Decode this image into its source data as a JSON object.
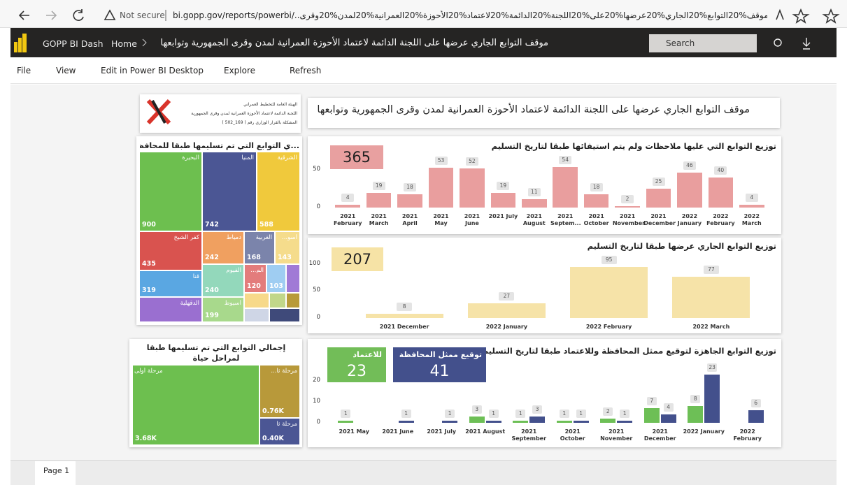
{
  "browser": {
    "security": "Not secure",
    "url": "bi.gopp.gov/reports/powerbi/..الجمه%20موقف%20التوابع%20الجاري%20عرضها%20على%20اللجنة%20الدائمة%20لاعتماد%20الأحوزة%20العمرانية%20لمدن%20وقرى"
  },
  "app_bar": {
    "app_name": "GOPP BI Dash",
    "breadcrumb": "Home",
    "report_title": "موقف التوابع الجاري عرضها على اللجنة الدائمة لاعتماد الأحوزة العمرانية لمدن وقرى الجمهورية وتوابعها",
    "search": "Search"
  },
  "toolbar": [
    "File",
    "View",
    "Edit in Power BI Desktop",
    "Explore",
    "Refresh"
  ],
  "header": {
    "lines": [
      "الهيئة العامة للتخطيط العمراني",
      "اللجنة الدائمة لاعتماد الأحوزة العمرانية لمدن وقرى الجمهورية",
      "المشكلة بالقرار الوزاري رقم ( 169_502 )"
    ],
    "title": "موقف التوابع الجاري عرضها على اللجنة الدائمة لاعتماد الأحوزة العمرانية لمدن وقرى الجمهورية وتوابعها"
  },
  "treemaps": [
    {
      "title": "...ي التوابع التي تم تسليمها طبقا للمحافظات",
      "tiles": [
        {
          "name": "البحيرة",
          "value": 900
        },
        {
          "name": "المنيا",
          "value": 742
        },
        {
          "name": "الشرقية",
          "value": 588
        },
        {
          "name": "كفر الشيخ",
          "value": 435
        },
        {
          "name": "دمياط",
          "value": 242
        },
        {
          "name": "الغربية",
          "value": 168
        },
        {
          "name": "أسو...",
          "value": 143
        },
        {
          "name": "قنا",
          "value": 319
        },
        {
          "name": "الفيوم",
          "value": 240
        },
        {
          "name": "الم...",
          "value": 120
        },
        {
          "value": 103
        },
        {
          "name": "الدقهلية"
        },
        {
          "name": "أسيوط",
          "value": 199
        }
      ]
    },
    {
      "title": "إجمالي التوابع التي تم تسليمها طبقا لمراحل حياة",
      "tiles": [
        {
          "name": "مرحلة أولى",
          "value": 3680,
          "value_label": "3.68K"
        },
        {
          "name": "مرحلة ثا...",
          "value": 760,
          "value_label": "0.76K"
        },
        {
          "name": "مرحلة ثا",
          "value": 400,
          "value_label": "0.40K"
        }
      ]
    }
  ],
  "chart_data": [
    {
      "type": "bar",
      "title": "توزيع التوابع التي عليها ملاحظات ولم يتم استيفائها طبقا لتاريخ التسليم",
      "cards": [
        {
          "value": 365
        }
      ],
      "categories": [
        "2021 February",
        "2021 March",
        "2021 April",
        "2021 May",
        "2021 June",
        "2021 July",
        "2021 August",
        "2021 Septem...",
        "2021 October",
        "2021 November",
        "2021 December",
        "2022 January",
        "2022 February",
        "2022 March"
      ],
      "values": [
        4,
        19,
        18,
        53,
        52,
        19,
        11,
        54,
        18,
        2,
        25,
        46,
        40,
        4
      ],
      "color": "#e99e9e",
      "ylim": [
        0,
        60
      ],
      "yticks": [
        0,
        50
      ]
    },
    {
      "type": "bar",
      "title": "توزيع التوابع الجاري عرضها طبقا لتاريخ التسليم",
      "cards": [
        {
          "value": 207
        }
      ],
      "categories": [
        "2021 December",
        "2022 January",
        "2022 February",
        "2022 March"
      ],
      "values": [
        8,
        27,
        95,
        77
      ],
      "color": "#f6e3a8",
      "ylim": [
        0,
        110
      ],
      "yticks": [
        0,
        50,
        100
      ]
    },
    {
      "type": "bar",
      "title": "توزيع التوابع الجاهزة لتوقيع ممثل المحافظة وللاعتماد طبقا لتاريخ التسليم",
      "cards": [
        {
          "label": "للاعتماد",
          "value": 23
        },
        {
          "label": "توقيع ممثل المحافظة",
          "value": 41
        }
      ],
      "categories": [
        "2021 May",
        "2021 June",
        "2021 July",
        "2021 August",
        "2021 September",
        "2021 October",
        "2021 November",
        "2021 December",
        "2022 January",
        "2022 February"
      ],
      "series": [
        {
          "color": "#6dbf56",
          "values": [
            1,
            null,
            null,
            3,
            1,
            1,
            2,
            7,
            8,
            null
          ]
        },
        {
          "color": "#43508c",
          "values": [
            null,
            1,
            1,
            1,
            3,
            1,
            1,
            4,
            23,
            6
          ]
        }
      ],
      "ylim": [
        0,
        25
      ],
      "yticks": [
        0,
        10,
        20
      ]
    }
  ],
  "footer": {
    "page": "Page 1"
  }
}
